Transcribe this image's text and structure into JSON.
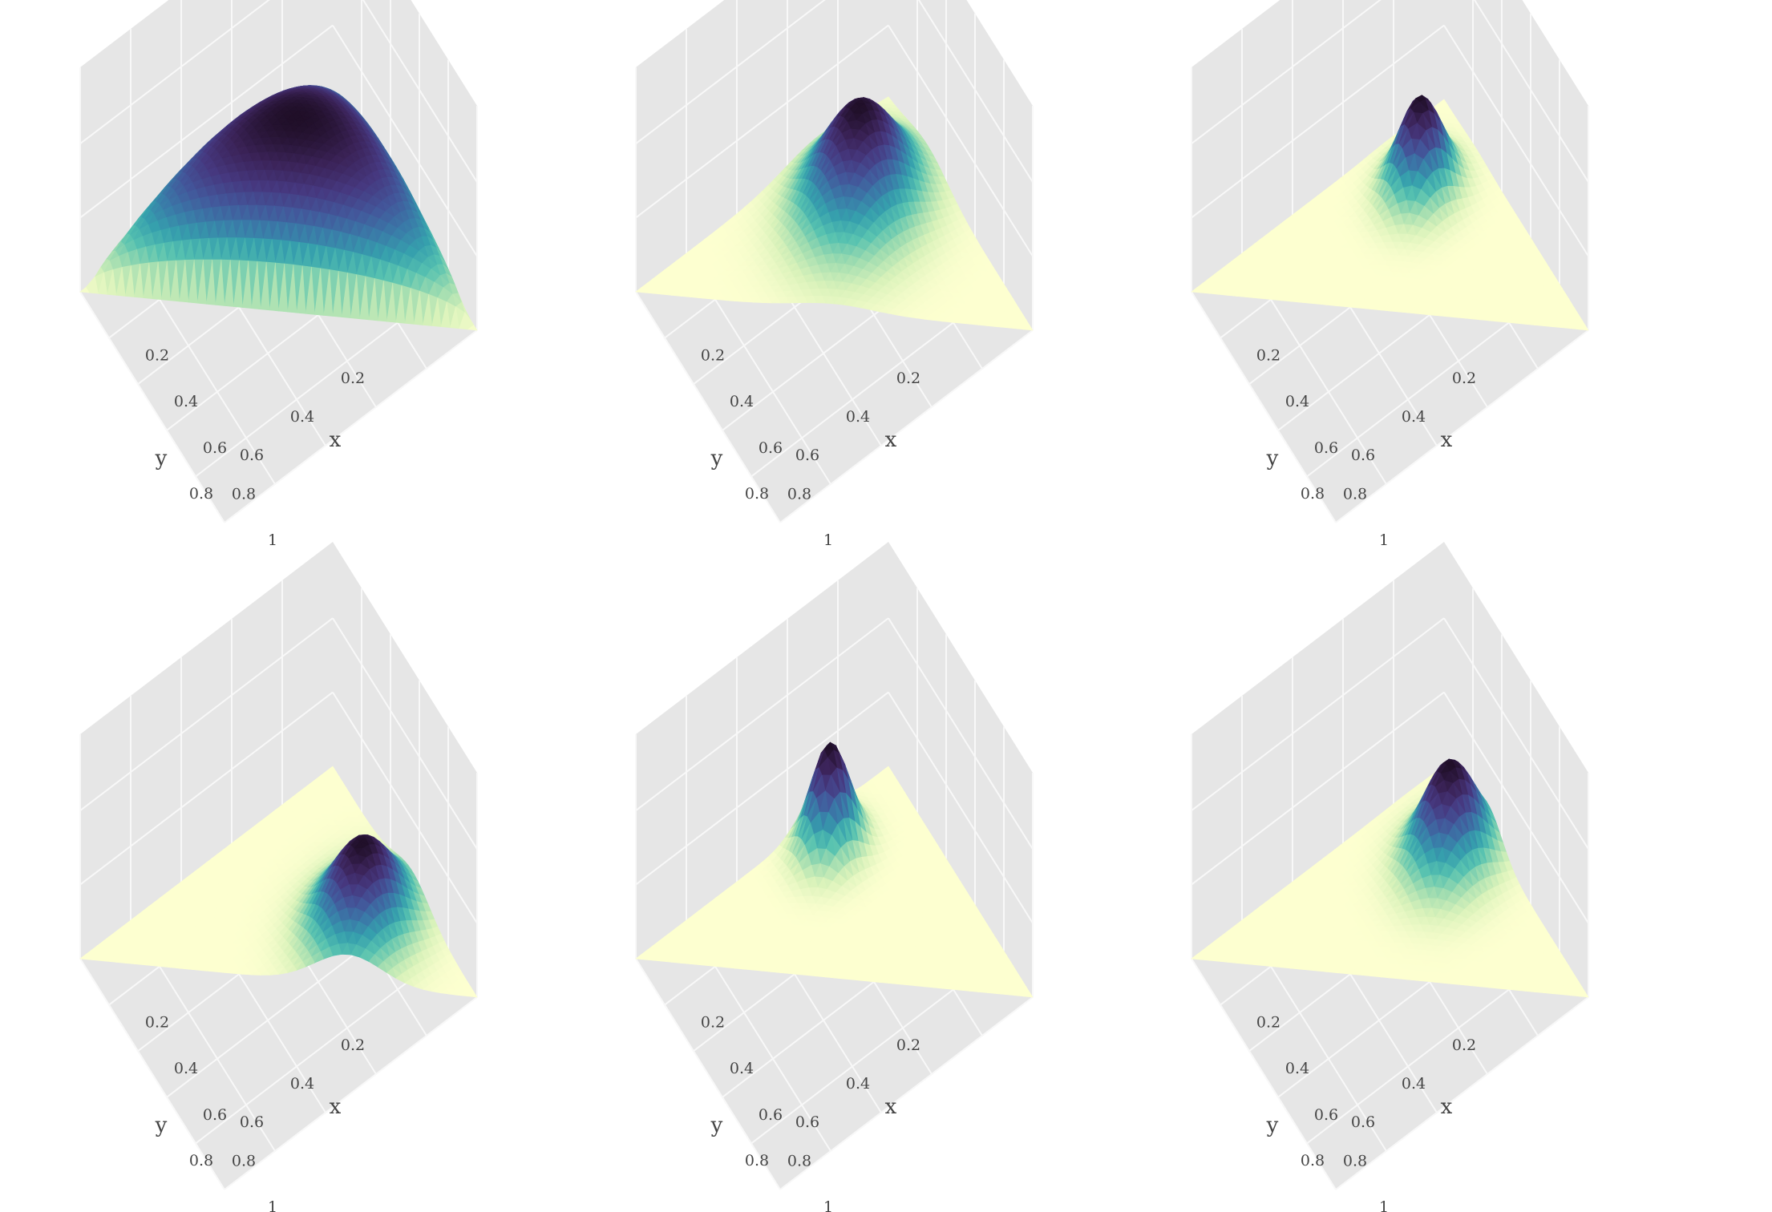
{
  "figure": {
    "layout": "2x3 grid of 3D surface plots",
    "colormap": [
      "#fdffd0",
      "#d9f2ba",
      "#9fdcb0",
      "#57c2b0",
      "#36a0ad",
      "#3a7aa8",
      "#43569a",
      "#46387f",
      "#3b2358",
      "#200f28"
    ],
    "pane_color": "#e6e6e6",
    "grid_color": "#f8f8f8"
  },
  "chart_data": [
    {
      "type": "surface",
      "panel": "row 1, column 1",
      "xlabel": "x",
      "ylabel": "y",
      "xticks": [
        "0.2",
        "0.4",
        "0.6",
        "0.8",
        "1"
      ],
      "yticks": [
        "0.2",
        "0.4",
        "0.6",
        "0.8"
      ],
      "domain": "simplex x + y <= 1",
      "peak": {
        "x": 0.33,
        "y": 0.33
      },
      "spread": 0.9,
      "height": 0.55
    },
    {
      "type": "surface",
      "panel": "row 1, column 2",
      "xlabel": "x",
      "ylabel": "y",
      "xticks": [
        "0.2",
        "0.4",
        "0.6",
        "0.8",
        "1"
      ],
      "yticks": [
        "0.2",
        "0.4",
        "0.6",
        "0.8"
      ],
      "domain": "simplex x + y <= 1",
      "peak": {
        "x": 0.27,
        "y": 0.27
      },
      "spread": 0.14,
      "height": 0.48
    },
    {
      "type": "surface",
      "panel": "row 1, column 3",
      "xlabel": "x",
      "ylabel": "y",
      "xticks": [
        "0.2",
        "0.4",
        "0.6",
        "0.8",
        "1"
      ],
      "yticks": [
        "0.2",
        "0.4",
        "0.6",
        "0.8"
      ],
      "domain": "simplex x + y <= 1",
      "peak": {
        "x": 0.22,
        "y": 0.22
      },
      "spread": 0.08,
      "height": 0.42
    },
    {
      "type": "surface",
      "panel": "row 2, column 1",
      "xlabel": "x",
      "ylabel": "y",
      "xticks": [
        "0.2",
        "0.4",
        "0.6",
        "0.8",
        "1"
      ],
      "yticks": [
        "0.2",
        "0.4",
        "0.6",
        "0.8"
      ],
      "domain": "simplex x + y <= 1",
      "peak": {
        "x": 0.55,
        "y": 0.2
      },
      "spread": 0.12,
      "height": 0.4
    },
    {
      "type": "surface",
      "panel": "row 2, column 2",
      "xlabel": "x",
      "ylabel": "y",
      "xticks": [
        "0.2",
        "0.4",
        "0.6",
        "0.8",
        "1"
      ],
      "yticks": [
        "0.2",
        "0.4",
        "0.6",
        "0.8"
      ],
      "domain": "simplex x + y <= 1",
      "peak": {
        "x": 0.12,
        "y": 0.3
      },
      "spread": 0.07,
      "height": 0.48
    },
    {
      "type": "surface",
      "panel": "row 2, column 3",
      "xlabel": "x",
      "ylabel": "y",
      "xticks": [
        "0.2",
        "0.4",
        "0.6",
        "0.8",
        "1"
      ],
      "yticks": [
        "0.2",
        "0.4",
        "0.6",
        "0.8"
      ],
      "domain": "simplex x + y <= 1",
      "peak": {
        "x": 0.3,
        "y": 0.15
      },
      "spread": 0.1,
      "height": 0.45
    }
  ]
}
